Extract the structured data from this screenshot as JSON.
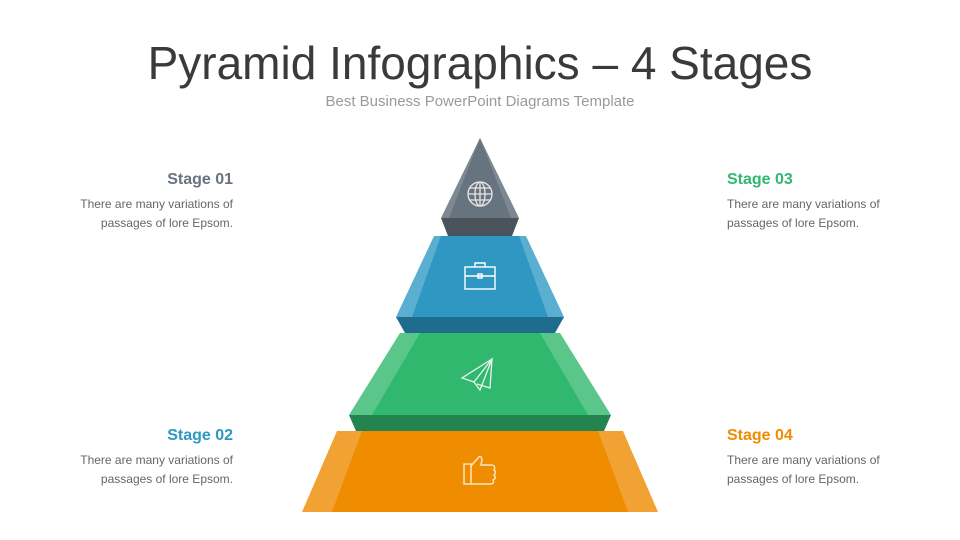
{
  "header": {
    "title": "Pyramid Infographics – 4 Stages",
    "subtitle": "Best Business PowerPoint Diagrams Template"
  },
  "stages": [
    {
      "title": "Stage 01",
      "text_line1": "There are many variations of",
      "text_line2": "passages of lore Epsom.",
      "color": "#67737f",
      "icon": "globe-icon"
    },
    {
      "title": "Stage 02",
      "text_line1": "There are many variations of",
      "text_line2": "passages of lore Epsom.",
      "color": "#2e98c2",
      "icon": "briefcase-icon"
    },
    {
      "title": "Stage 03",
      "text_line1": "There are many variations of",
      "text_line2": "passages of lore Epsom.",
      "color": "#31b86f",
      "icon": "paper-plane-icon"
    },
    {
      "title": "Stage 04",
      "text_line1": "There are many variations of",
      "text_line2": "passages of lore Epsom.",
      "color": "#f08c00",
      "icon": "thumbs-up-icon"
    }
  ]
}
